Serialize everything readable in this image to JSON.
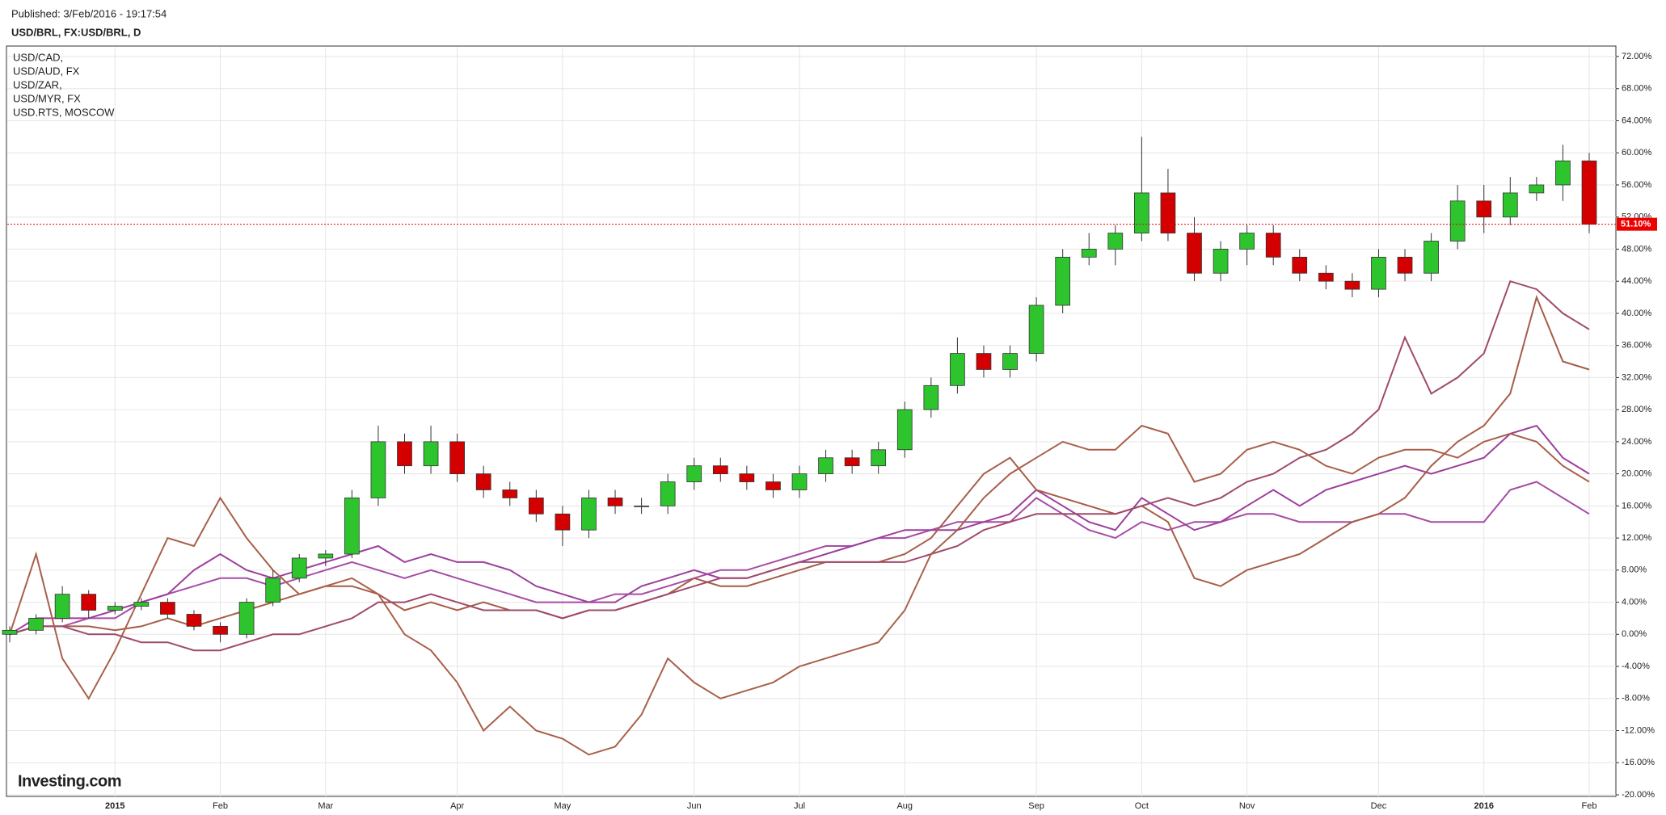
{
  "header": {
    "published": "Published: 3/Feb/2016 - 19:17:54",
    "symbol": "USD/BRL, FX:USD/BRL, D"
  },
  "logo": "Investing.com",
  "chart_data": {
    "type": "candlestick",
    "categories": [
      null,
      null,
      null,
      null,
      "2015",
      null,
      null,
      null,
      "Feb",
      null,
      null,
      null,
      "Mar",
      null,
      null,
      null,
      null,
      "Apr",
      null,
      null,
      null,
      "May",
      null,
      null,
      null,
      null,
      "Jun",
      null,
      null,
      null,
      "Jul",
      null,
      null,
      null,
      "Aug",
      null,
      null,
      null,
      null,
      "Sep",
      null,
      null,
      null,
      "Oct",
      null,
      null,
      null,
      "Nov",
      null,
      null,
      null,
      null,
      "Dec",
      null,
      null,
      null,
      "2016",
      null,
      null,
      null,
      "Feb"
    ],
    "open": [
      0,
      0.5,
      2,
      5,
      3,
      3.5,
      4,
      2.5,
      1,
      0,
      4,
      7,
      9.5,
      10,
      17,
      24,
      21,
      24,
      20,
      18,
      17,
      15,
      13,
      17,
      16,
      16,
      19,
      21,
      20,
      19,
      18,
      20,
      22,
      21,
      23,
      28,
      31,
      35,
      33,
      35,
      41,
      47,
      48,
      50,
      55,
      50,
      45,
      48,
      50,
      47,
      45,
      44,
      43,
      47,
      45,
      49,
      54,
      52,
      55,
      56,
      59
    ],
    "high": [
      1,
      2.5,
      6,
      5.5,
      4,
      4.5,
      4.5,
      3,
      1.5,
      4.5,
      8,
      10,
      10.5,
      18,
      26,
      25,
      26,
      25,
      21,
      19,
      18,
      16,
      18,
      18,
      17,
      20,
      22,
      22,
      21,
      20,
      21,
      23,
      23,
      24,
      29,
      32,
      37,
      36,
      36,
      42,
      48,
      50,
      51,
      62,
      58,
      52,
      49,
      51,
      51,
      48,
      46,
      45,
      48,
      48,
      50,
      56,
      56,
      57,
      57,
      61,
      60
    ],
    "low": [
      -1,
      0,
      1.5,
      2,
      2.5,
      3,
      2,
      0.5,
      -1,
      -0.5,
      3.5,
      6.5,
      8.5,
      9.5,
      16,
      20,
      20,
      19,
      17,
      16,
      14,
      11,
      12,
      15,
      15,
      15,
      18,
      19,
      18,
      17,
      17,
      19,
      20,
      20,
      22,
      27,
      30,
      32,
      32,
      34,
      40,
      46,
      46,
      49,
      49,
      44,
      44,
      46,
      46,
      44,
      43,
      42,
      42,
      44,
      44,
      48,
      50,
      51,
      54,
      54,
      50
    ],
    "close": [
      0.5,
      2,
      5,
      3,
      3.5,
      4,
      2.5,
      1,
      0,
      4,
      7,
      9.5,
      10,
      17,
      24,
      21,
      24,
      20,
      18,
      17,
      15,
      13,
      17,
      16,
      16,
      19,
      21,
      20,
      19,
      18,
      20,
      22,
      21,
      23,
      28,
      31,
      35,
      33,
      35,
      41,
      47,
      48,
      50,
      55,
      50,
      45,
      48,
      50,
      47,
      45,
      44,
      43,
      47,
      45,
      49,
      54,
      52,
      55,
      56,
      59,
      51.1
    ],
    "up_color": "#2ec42e",
    "down_color": "#d40000",
    "last_value": {
      "value": 51.1,
      "label": "51.10%"
    },
    "series": [
      {
        "name": "USD/CAD,",
        "color": "#a64ca6",
        "values": [
          0,
          1,
          1,
          2,
          2,
          4,
          5,
          6,
          7,
          7,
          6,
          7,
          8,
          9,
          8,
          7,
          8,
          7,
          6,
          5,
          4,
          4,
          4,
          5,
          5,
          6,
          7,
          8,
          8,
          9,
          10,
          11,
          11,
          12,
          12,
          13,
          14,
          14,
          14,
          17,
          15,
          13,
          12,
          14,
          13,
          14,
          14,
          15,
          15,
          14,
          14,
          14,
          15,
          15,
          14,
          14,
          14,
          18,
          19,
          17,
          15
        ]
      },
      {
        "name": "USD/AUD, FX",
        "color": "#9c3f9c",
        "values": [
          0,
          2,
          2,
          2,
          3,
          4,
          5,
          8,
          10,
          8,
          7,
          8,
          9,
          10,
          11,
          9,
          10,
          9,
          9,
          8,
          6,
          5,
          4,
          4,
          6,
          7,
          8,
          7,
          7,
          8,
          9,
          10,
          11,
          12,
          13,
          13,
          13,
          14,
          15,
          18,
          16,
          14,
          13,
          17,
          15,
          13,
          14,
          16,
          18,
          16,
          18,
          19,
          20,
          21,
          20,
          21,
          22,
          25,
          26,
          22,
          20
        ]
      },
      {
        "name": "USD/ZAR,",
        "color": "#a65d48",
        "values": [
          0,
          1,
          1,
          1,
          0.5,
          1,
          2,
          1,
          2,
          3,
          4,
          5,
          6,
          6,
          5,
          3,
          4,
          3,
          4,
          3,
          3,
          2,
          3,
          3,
          4,
          5,
          7,
          6,
          6,
          7,
          8,
          9,
          9,
          9,
          10,
          12,
          16,
          20,
          22,
          18,
          17,
          16,
          15,
          16,
          14,
          7,
          6,
          8,
          9,
          10,
          12,
          14,
          15,
          17,
          21,
          24,
          26,
          30,
          42,
          34,
          33
        ]
      },
      {
        "name": "USD/MYR, FX",
        "color": "#a04a6a",
        "values": [
          0,
          1,
          1,
          0,
          0,
          -1,
          -1,
          -2,
          -2,
          -1,
          0,
          0,
          1,
          2,
          4,
          4,
          5,
          4,
          3,
          3,
          3,
          2,
          3,
          3,
          4,
          5,
          6,
          7,
          7,
          8,
          9,
          9,
          9,
          9,
          9,
          10,
          11,
          13,
          14,
          15,
          15,
          15,
          15,
          16,
          17,
          16,
          17,
          19,
          20,
          22,
          23,
          25,
          28,
          37,
          30,
          32,
          35,
          44,
          43,
          40,
          38
        ]
      },
      {
        "name": "USD.RTS, MOSCOW",
        "color": "#a8604a",
        "values": [
          0,
          10,
          -3,
          -8,
          -2,
          5,
          12,
          11,
          17,
          12,
          8,
          5,
          6,
          7,
          5,
          0,
          -2,
          -6,
          -12,
          -9,
          -12,
          -13,
          -15,
          -14,
          -10,
          -3,
          -6,
          -8,
          -7,
          -6,
          -4,
          -3,
          -2,
          -1,
          3,
          10,
          13,
          17,
          20,
          22,
          24,
          23,
          23,
          26,
          25,
          19,
          20,
          23,
          24,
          23,
          21,
          20,
          22,
          23,
          23,
          22,
          24,
          25,
          24,
          21,
          19
        ]
      }
    ],
    "ylim": [
      -20,
      72
    ],
    "yticks": [
      {
        "value": -20,
        "label": "-20.00%"
      },
      {
        "value": -16,
        "label": "-16.00%"
      },
      {
        "value": -12,
        "label": "-12.00%"
      },
      {
        "value": -8,
        "label": "-8.00%"
      },
      {
        "value": -4,
        "label": "-4.00%"
      },
      {
        "value": 0,
        "label": "0.00%"
      },
      {
        "value": 4,
        "label": "4.00%"
      },
      {
        "value": 8,
        "label": "8.00%"
      },
      {
        "value": 12,
        "label": "12.00%"
      },
      {
        "value": 16,
        "label": "16.00%"
      },
      {
        "value": 20,
        "label": "20.00%"
      },
      {
        "value": 24,
        "label": "24.00%"
      },
      {
        "value": 28,
        "label": "28.00%"
      },
      {
        "value": 32,
        "label": "32.00%"
      },
      {
        "value": 36,
        "label": "36.00%"
      },
      {
        "value": 40,
        "label": "40.00%"
      },
      {
        "value": 44,
        "label": "44.00%"
      },
      {
        "value": 48,
        "label": "48.00%"
      },
      {
        "value": 52,
        "label": "52.00%"
      },
      {
        "value": 56,
        "label": "56.00%"
      },
      {
        "value": 60,
        "label": "60.00%"
      },
      {
        "value": 64,
        "label": "64.00%"
      },
      {
        "value": 68,
        "label": "68.00%"
      },
      {
        "value": 72,
        "label": "72.00%"
      }
    ],
    "grid": true
  }
}
